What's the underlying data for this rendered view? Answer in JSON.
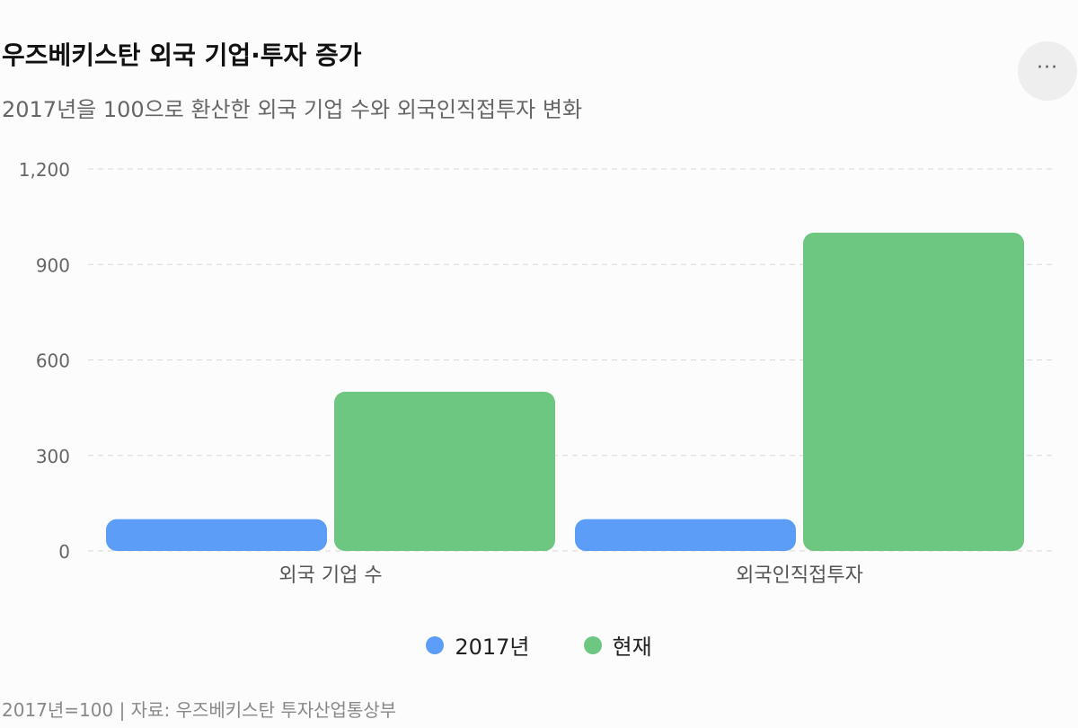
{
  "title": "우즈베키스탄 외국 기업·투자 증가",
  "subtitle": "2017년을 100으로 환산한 외국 기업 수와 외국인직접투자 변화",
  "menu_icon": "more-horizontal-icon",
  "menu_label": "···",
  "footer": "2017년=100 | 자료: 우즈베키스탄 투자산업통상부",
  "colors": {
    "series_2017": "#5b9df7",
    "series_now": "#6dc781",
    "grid": "#d8d8d8",
    "axis_text": "#666666"
  },
  "chart_data": {
    "type": "bar",
    "categories": [
      "외국 기업 수",
      "외국인직접투자"
    ],
    "series": [
      {
        "name": "2017년",
        "values": [
          100,
          100
        ]
      },
      {
        "name": "현재",
        "values": [
          500,
          1000
        ]
      }
    ],
    "yticks": [
      "0",
      "300",
      "600",
      "900",
      "1,200"
    ],
    "ylim": [
      0,
      1200
    ],
    "grid": true,
    "legend_position": "bottom"
  }
}
